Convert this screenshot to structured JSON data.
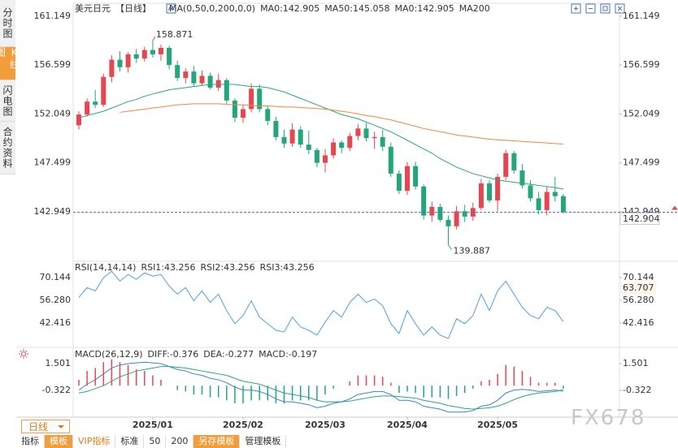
{
  "ui": {
    "sidebar": [
      "分时图",
      "K线图",
      "闪电图",
      "合约资料"
    ],
    "period_select": "日线",
    "toolbar": [
      "指标",
      "模板",
      "VIP指标",
      "标准",
      "50",
      "200",
      "另存模板",
      "管理模板"
    ],
    "watermark": "FX678"
  },
  "chart_data": [
    {
      "type": "candlestick",
      "title": "美元日元",
      "period": "【日线】",
      "indicator": "MA(0,50,0,200,0,0)",
      "legend_extra": [
        "MA0:142.905",
        "MA0:142.905"
      ],
      "legend_extra_color": "#4da3e0",
      "up_color": "#e8464f",
      "down_color": "#23a77a",
      "ylim": [
        138.49,
        162.05
      ],
      "yticks": [
        142.949,
        147.499,
        152.049,
        156.599,
        161.149
      ],
      "grid": false,
      "xticks": [
        {
          "value": 9,
          "label": "2025/01"
        },
        {
          "value": 20,
          "label": "2025/02"
        },
        {
          "value": 30,
          "label": "2025/03"
        },
        {
          "value": 40,
          "label": "2025/04"
        },
        {
          "value": 51,
          "label": "2025/05"
        }
      ],
      "last_price": 142.904,
      "last_price_color": "#e8464f",
      "high_label_index": 9,
      "low_label_index": 45,
      "ohlc": [
        [
          151.0,
          152.3,
          150.6,
          152.0
        ],
        [
          152.0,
          153.5,
          151.8,
          153.2
        ],
        [
          153.2,
          154.3,
          152.6,
          152.9
        ],
        [
          152.9,
          155.8,
          152.7,
          155.5
        ],
        [
          155.5,
          157.5,
          155.0,
          157.1
        ],
        [
          157.1,
          157.9,
          156.0,
          156.4
        ],
        [
          156.4,
          157.8,
          155.9,
          157.6
        ],
        [
          157.6,
          158.1,
          156.8,
          157.2
        ],
        [
          157.2,
          158.3,
          156.9,
          158.0
        ],
        [
          158.0,
          158.871,
          157.3,
          157.6
        ],
        [
          157.6,
          158.5,
          157.0,
          158.2
        ],
        [
          158.2,
          158.4,
          156.2,
          156.6
        ],
        [
          156.6,
          157.0,
          155.1,
          155.4
        ],
        [
          155.4,
          156.3,
          154.9,
          156.0
        ],
        [
          156.0,
          156.5,
          154.6,
          154.9
        ],
        [
          154.9,
          156.1,
          154.7,
          155.6
        ],
        [
          155.6,
          155.9,
          154.3,
          154.5
        ],
        [
          154.5,
          155.8,
          154.2,
          155.2
        ],
        [
          155.2,
          155.4,
          153.0,
          153.3
        ],
        [
          153.3,
          153.5,
          151.3,
          151.7
        ],
        [
          151.7,
          152.9,
          151.2,
          152.5
        ],
        [
          152.5,
          154.9,
          152.2,
          154.4
        ],
        [
          154.4,
          154.8,
          152.2,
          152.5
        ],
        [
          152.5,
          152.8,
          151.0,
          151.4
        ],
        [
          151.4,
          151.8,
          149.6,
          149.9
        ],
        [
          149.9,
          150.6,
          148.9,
          149.3
        ],
        [
          149.3,
          151.2,
          149.0,
          150.6
        ],
        [
          150.6,
          150.9,
          148.9,
          149.2
        ],
        [
          149.2,
          150.5,
          148.3,
          148.7
        ],
        [
          148.7,
          148.9,
          147.1,
          147.5
        ],
        [
          147.5,
          148.8,
          146.6,
          148.2
        ],
        [
          148.2,
          149.8,
          147.9,
          149.4
        ],
        [
          149.4,
          149.6,
          148.4,
          148.9
        ],
        [
          148.9,
          150.3,
          148.6,
          150.0
        ],
        [
          150.0,
          151.1,
          149.6,
          150.7
        ],
        [
          150.7,
          151.2,
          149.5,
          149.8
        ],
        [
          149.8,
          150.4,
          148.8,
          149.9
        ],
        [
          149.9,
          150.6,
          148.6,
          149.0
        ],
        [
          149.0,
          149.4,
          146.2,
          146.5
        ],
        [
          146.5,
          146.8,
          144.6,
          144.9
        ],
        [
          144.9,
          147.6,
          144.5,
          147.2
        ],
        [
          147.2,
          147.6,
          145.0,
          145.3
        ],
        [
          145.3,
          145.5,
          142.2,
          142.6
        ],
        [
          142.6,
          143.9,
          142.0,
          143.4
        ],
        [
          143.4,
          143.7,
          142.0,
          142.2
        ],
        [
          142.2,
          142.6,
          139.887,
          141.6
        ],
        [
          141.6,
          143.5,
          141.3,
          143.0
        ],
        [
          143.0,
          143.6,
          142.0,
          142.5
        ],
        [
          142.5,
          143.8,
          142.1,
          143.3
        ],
        [
          143.3,
          146.0,
          143.1,
          145.6
        ],
        [
          145.6,
          145.9,
          143.8,
          144.0
        ],
        [
          144.0,
          146.5,
          143.0,
          146.2
        ],
        [
          146.2,
          148.7,
          145.9,
          148.4
        ],
        [
          148.4,
          148.6,
          146.5,
          146.8
        ],
        [
          146.8,
          147.4,
          145.1,
          145.4
        ],
        [
          145.4,
          145.9,
          143.9,
          144.2
        ],
        [
          144.2,
          144.8,
          142.7,
          143.1
        ],
        [
          143.1,
          145.3,
          142.6,
          144.8
        ],
        [
          144.8,
          146.2,
          143.9,
          144.4
        ],
        [
          144.4,
          144.6,
          142.8,
          142.904
        ]
      ],
      "series": [
        {
          "name": "MA50:145.058",
          "color": "#2aa876",
          "values": [
            151.7,
            151.9,
            152.1,
            152.3,
            152.6,
            152.9,
            153.2,
            153.4,
            153.7,
            153.9,
            154.1,
            154.3,
            154.4,
            154.5,
            154.6,
            154.7,
            154.8,
            154.8,
            154.8,
            154.8,
            154.7,
            154.6,
            154.6,
            154.5,
            154.3,
            154.1,
            153.8,
            153.5,
            153.2,
            152.9,
            152.6,
            152.3,
            152.0,
            151.8,
            151.6,
            151.3,
            151.0,
            150.7,
            150.4,
            150.0,
            149.6,
            149.2,
            148.8,
            148.4,
            147.9,
            147.5,
            147.1,
            146.8,
            146.5,
            146.3,
            146.1,
            145.9,
            145.8,
            145.7,
            145.6,
            145.5,
            145.4,
            145.3,
            145.2,
            145.058
          ]
        },
        {
          "name": "MA200",
          "color": "#f0883e",
          "values": [
            null,
            null,
            null,
            null,
            null,
            152.2,
            152.3,
            152.4,
            152.5,
            152.6,
            152.7,
            152.8,
            152.9,
            152.95,
            153.0,
            153.0,
            153.0,
            153.0,
            152.95,
            152.9,
            152.9,
            152.85,
            152.8,
            152.8,
            152.75,
            152.7,
            152.7,
            152.65,
            152.6,
            152.55,
            152.5,
            152.4,
            152.3,
            152.2,
            152.05,
            151.9,
            151.8,
            151.65,
            151.5,
            151.3,
            151.1,
            150.9,
            150.7,
            150.55,
            150.4,
            150.25,
            150.1,
            150.0,
            149.9,
            149.8,
            149.7,
            149.65,
            149.6,
            149.55,
            149.5,
            149.45,
            149.4,
            149.35,
            149.3,
            149.25
          ]
        }
      ]
    },
    {
      "type": "line",
      "indicator": "RSI(14,14,14)",
      "legend_extra": [
        "RSI2:43.256",
        "RSI3:43.256"
      ],
      "legend_extra_color": "#4da3e0",
      "ylim": [
        29.05,
        78.56
      ],
      "yticks": [
        42.416,
        {
          "value": 56.28,
          "label": "56.280"
        },
        70.144
      ],
      "last_tag": 63.707,
      "last_tag_color": "#c98a2c",
      "series": [
        {
          "name": "RSI1:43.256",
          "color": "#4da3e0",
          "values": [
            58,
            64,
            62,
            70,
            74,
            68,
            72,
            69,
            73,
            71,
            72,
            65,
            60,
            64,
            56,
            62,
            55,
            60,
            50,
            42,
            47,
            56,
            46,
            42,
            38,
            37,
            46,
            40,
            38,
            35,
            43,
            50,
            46,
            55,
            60,
            55,
            57,
            53,
            42,
            36,
            50,
            42,
            35,
            40,
            35,
            33,
            45,
            42,
            47,
            60,
            50,
            62,
            68,
            60,
            52,
            47,
            45,
            52,
            50,
            43.256
          ]
        }
      ]
    },
    {
      "type": "macd",
      "indicator": "MACD(26,12,9)",
      "ylim": [
        -2.034,
        2.219
      ],
      "yticks": [
        -0.322,
        1.501
      ],
      "up_color": "#e8464f",
      "down_color": "#23a77a",
      "series": [
        {
          "name": "DIFF:-0.376",
          "color": "#3b82d6",
          "values": [
            -0.3,
            0.1,
            0.4,
            0.8,
            1.2,
            1.4,
            1.5,
            1.55,
            1.6,
            1.55,
            1.5,
            1.3,
            1.1,
            1.0,
            0.8,
            0.7,
            0.5,
            0.4,
            0.2,
            -0.1,
            -0.3,
            -0.3,
            -0.4,
            -0.6,
            -0.9,
            -1.1,
            -1.1,
            -1.2,
            -1.3,
            -1.5,
            -1.4,
            -1.2,
            -1.1,
            -0.9,
            -0.6,
            -0.5,
            -0.4,
            -0.4,
            -0.6,
            -1.0,
            -1.0,
            -1.1,
            -1.4,
            -1.5,
            -1.6,
            -1.8,
            -1.8,
            -1.8,
            -1.7,
            -1.4,
            -1.3,
            -1.0,
            -0.5,
            -0.3,
            -0.25,
            -0.3,
            -0.4,
            -0.35,
            -0.3,
            -0.376
          ]
        },
        {
          "name": "DEA:-0.277",
          "color": "#2aa876",
          "values": [
            -0.5,
            -0.4,
            -0.2,
            0.0,
            0.3,
            0.6,
            0.8,
            1.0,
            1.1,
            1.2,
            1.3,
            1.3,
            1.25,
            1.2,
            1.1,
            1.0,
            0.9,
            0.8,
            0.7,
            0.5,
            0.3,
            0.2,
            0.1,
            -0.1,
            -0.3,
            -0.5,
            -0.6,
            -0.7,
            -0.8,
            -1.0,
            -1.1,
            -1.1,
            -1.1,
            -1.05,
            -0.95,
            -0.85,
            -0.75,
            -0.7,
            -0.7,
            -0.75,
            -0.8,
            -0.85,
            -1.0,
            -1.1,
            -1.2,
            -1.35,
            -1.45,
            -1.55,
            -1.6,
            -1.55,
            -1.5,
            -1.4,
            -1.2,
            -0.95,
            -0.75,
            -0.6,
            -0.5,
            -0.45,
            -0.4,
            -0.277
          ]
        },
        {
          "name": "MACD:-0.197",
          "color": "#9b59b6",
          "kind": "bar",
          "values": [
            0.4,
            1.0,
            1.2,
            1.6,
            1.8,
            1.6,
            1.4,
            1.1,
            1.0,
            0.7,
            0.4,
            0.0,
            -0.3,
            -0.4,
            -0.6,
            -0.6,
            -0.8,
            -0.8,
            -1.0,
            -1.2,
            -1.2,
            -1.0,
            -1.0,
            -1.0,
            -1.2,
            -1.2,
            -1.0,
            -1.0,
            -1.0,
            -1.0,
            -0.6,
            -0.2,
            0.0,
            0.3,
            0.7,
            0.7,
            0.7,
            0.6,
            0.2,
            -0.5,
            -0.4,
            -0.5,
            -0.8,
            -0.8,
            -0.8,
            -0.9,
            -0.7,
            -0.5,
            -0.2,
            0.3,
            0.4,
            0.8,
            1.4,
            1.3,
            1.0,
            0.6,
            0.2,
            0.2,
            0.2,
            -0.197
          ]
        }
      ]
    }
  ]
}
